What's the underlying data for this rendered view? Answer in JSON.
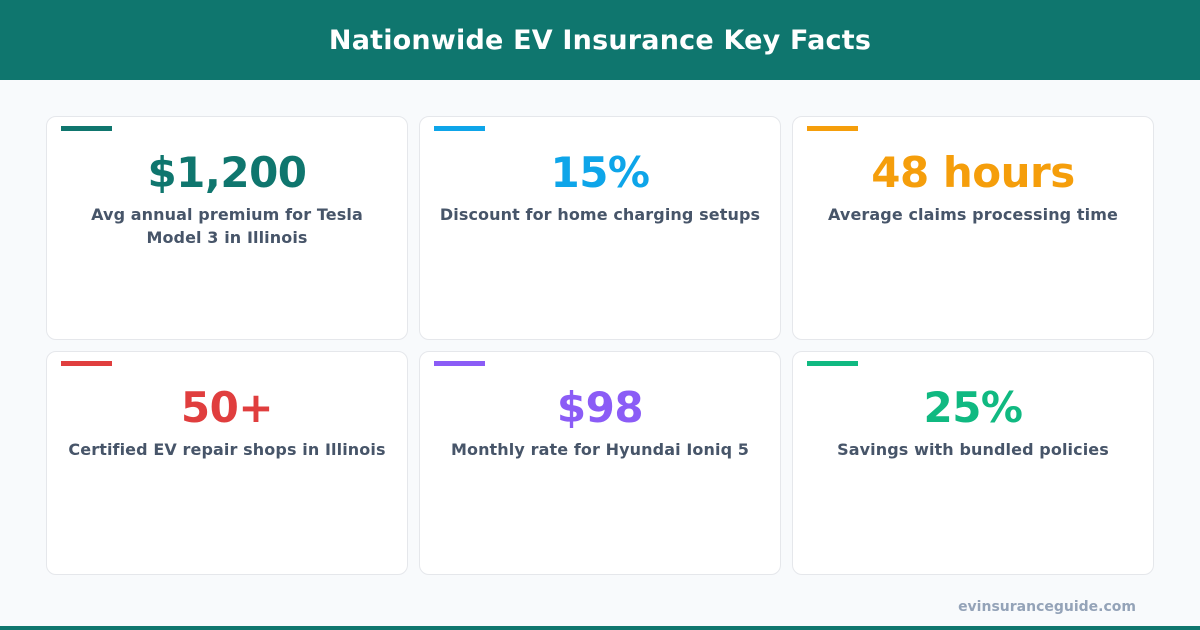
{
  "header": {
    "title": "Nationwide EV Insurance Key Facts",
    "background": "#0f766e"
  },
  "cards": [
    {
      "value": "$1,200",
      "label": "Avg annual premium for Tesla Model 3 in Illinois",
      "color": "#0f766e"
    },
    {
      "value": "15%",
      "label": "Discount for home charging setups",
      "color": "#0ea5e9"
    },
    {
      "value": "48 hours",
      "label": "Average claims processing time",
      "color": "#f59e0b"
    },
    {
      "value": "50+",
      "label": "Certified EV repair shops in Illinois",
      "color": "#e03e3e"
    },
    {
      "value": "$98",
      "label": "Monthly rate for Hyundai Ioniq 5",
      "color": "#8b5cf6"
    },
    {
      "value": "25%",
      "label": "Savings with bundled policies",
      "color": "#10b981"
    }
  ],
  "footer": {
    "site": "evinsuranceguide.com"
  }
}
